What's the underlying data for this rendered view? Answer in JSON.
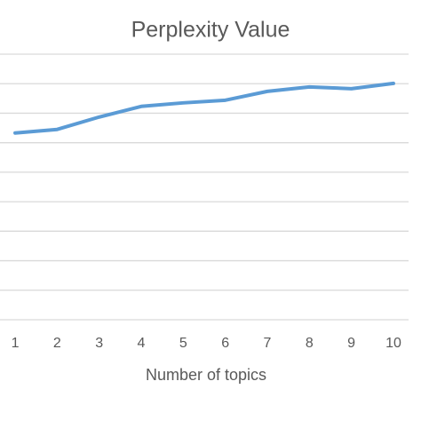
{
  "chart_data": {
    "type": "line",
    "title": "Perplexity Value",
    "x_label": "Number of topics",
    "x": [
      1,
      2,
      3,
      4,
      5,
      6,
      7,
      8,
      9,
      10
    ],
    "series": [
      {
        "color": "#5b9bd5",
        "values": [
          6.33,
          6.45,
          6.87,
          7.23,
          7.35,
          7.44,
          7.74,
          7.89,
          7.83,
          8.01
        ]
      }
    ],
    "xlim": [
      0.64,
      10.36
    ],
    "xticks": [
      1,
      2,
      3,
      4,
      5,
      6,
      7,
      8,
      9,
      10
    ],
    "ylim": [
      0,
      9
    ],
    "yticks": [
      0,
      1,
      2,
      3,
      4,
      5,
      6,
      7,
      8,
      9
    ],
    "show_ytick_labels": false,
    "grid": true
  }
}
